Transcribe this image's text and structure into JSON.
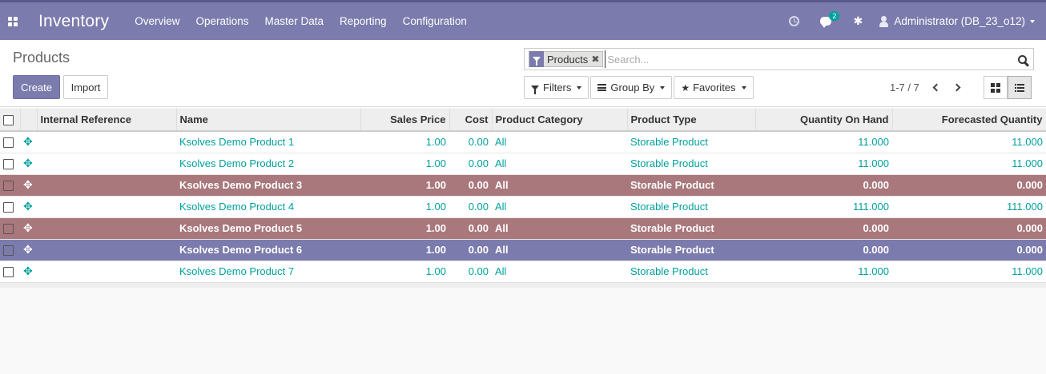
{
  "navbar": {
    "app_name": "Inventory",
    "menu": [
      "Overview",
      "Operations",
      "Master Data",
      "Reporting",
      "Configuration"
    ],
    "chat_badge": "2",
    "user": "Administrator (DB_23_o12)"
  },
  "control": {
    "title": "Products",
    "create_label": "Create",
    "import_label": "Import",
    "facet_label": "Products",
    "search_placeholder": "Search...",
    "filters_label": "Filters",
    "groupby_label": "Group By",
    "favorites_label": "Favorites",
    "pager": "1-7 / 7"
  },
  "table": {
    "columns": [
      "Internal Reference",
      "Name",
      "Sales Price",
      "Cost",
      "Product Category",
      "Product Type",
      "Quantity On Hand",
      "Forecasted Quantity"
    ],
    "rows": [
      {
        "ref": "",
        "name": "Ksolves Demo Product 1",
        "price": "1.00",
        "cost": "0.00",
        "category": "All",
        "type": "Storable Product",
        "onhand": "11.000",
        "forecast": "11.000"
      },
      {
        "ref": "",
        "name": "Ksolves Demo Product 2",
        "price": "1.00",
        "cost": "0.00",
        "category": "All",
        "type": "Storable Product",
        "onhand": "11.000",
        "forecast": "11.000"
      },
      {
        "ref": "",
        "name": "Ksolves Demo Product 3",
        "price": "1.00",
        "cost": "0.00",
        "category": "All",
        "type": "Storable Product",
        "onhand": "0.000",
        "forecast": "0.000"
      },
      {
        "ref": "",
        "name": "Ksolves Demo Product 4",
        "price": "1.00",
        "cost": "0.00",
        "category": "All",
        "type": "Storable Product",
        "onhand": "111.000",
        "forecast": "111.000"
      },
      {
        "ref": "",
        "name": "Ksolves Demo Product 5",
        "price": "1.00",
        "cost": "0.00",
        "category": "All",
        "type": "Storable Product",
        "onhand": "0.000",
        "forecast": "0.000"
      },
      {
        "ref": "",
        "name": "Ksolves Demo Product 6",
        "price": "1.00",
        "cost": "0.00",
        "category": "All",
        "type": "Storable Product",
        "onhand": "0.000",
        "forecast": "0.000"
      },
      {
        "ref": "",
        "name": "Ksolves Demo Product 7",
        "price": "1.00",
        "cost": "0.00",
        "category": "All",
        "type": "Storable Product",
        "onhand": "11.000",
        "forecast": "11.000"
      }
    ]
  },
  "colors": {
    "navbar": "#7c7bad",
    "link": "#00a09d",
    "row_highlight_red": "#a9787c",
    "row_highlight_blue": "#7c7bad"
  },
  "icons": {
    "handle": "✥",
    "bug": "✱",
    "star": "★",
    "close": "✖"
  }
}
